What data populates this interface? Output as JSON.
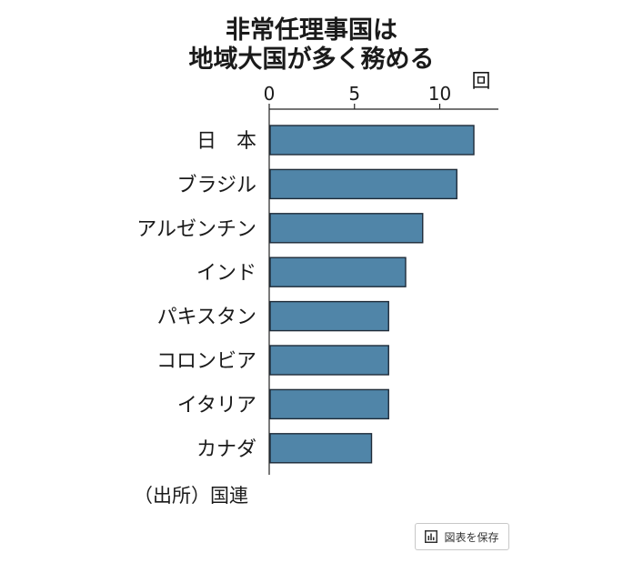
{
  "chart_data": {
    "type": "bar",
    "orientation": "horizontal",
    "title_lines": [
      "非常任理事国は",
      "地域大国が多く務める"
    ],
    "unit": "回",
    "categories": [
      "日　本",
      "ブラジル",
      "アルゼンチン",
      "インド",
      "パキスタン",
      "コロンビア",
      "イタリア",
      "カナダ"
    ],
    "values": [
      12,
      11,
      9,
      8,
      7,
      7,
      7,
      6
    ],
    "x_ticks": [
      0,
      5,
      10
    ],
    "xlim": [
      0,
      13.5
    ],
    "bar_color": "#5085a8",
    "bar_stroke": "#1e2b38",
    "grid": false
  },
  "source": "（出所）国連",
  "save_button": {
    "label": "図表を保存",
    "icon": "bar-chart-icon"
  }
}
